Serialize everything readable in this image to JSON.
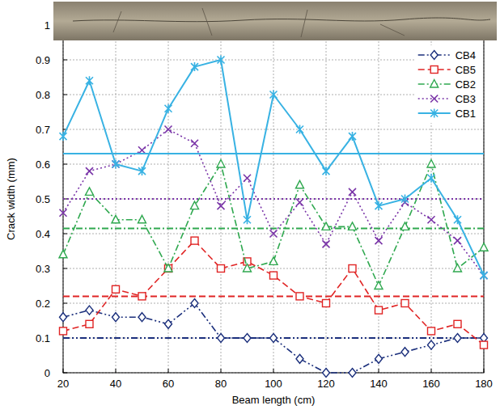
{
  "chart_data": {
    "type": "line",
    "x_label": "Beam length (cm)",
    "y_label": "Crack width (mm)",
    "x": [
      20,
      30,
      40,
      50,
      60,
      70,
      80,
      90,
      100,
      110,
      120,
      130,
      140,
      150,
      160,
      170,
      180
    ],
    "xlim": [
      20,
      180
    ],
    "xticks": [
      20,
      40,
      60,
      80,
      100,
      120,
      140,
      160,
      180
    ],
    "ylim": [
      0,
      1
    ],
    "yticks": [
      0,
      0.1,
      0.2,
      0.3,
      0.4,
      0.5,
      0.6,
      0.7,
      0.8,
      0.9,
      1
    ],
    "grid": true,
    "legend": "upper right",
    "series": [
      {
        "name": "CB4",
        "color": "#1b2f7c",
        "marker": "diamond",
        "line_style": "dash-dot-dot",
        "mean": 0.1,
        "values": [
          0.16,
          0.18,
          0.16,
          0.16,
          0.14,
          0.2,
          0.1,
          0.1,
          0.1,
          0.04,
          0.0,
          0.0,
          0.04,
          0.06,
          0.08,
          0.1,
          0.1
        ]
      },
      {
        "name": "CB5",
        "color": "#e02424",
        "marker": "square",
        "line_style": "dashed",
        "mean": 0.22,
        "values": [
          0.12,
          0.14,
          0.24,
          0.22,
          0.3,
          0.38,
          0.3,
          0.32,
          0.28,
          0.22,
          0.2,
          0.3,
          0.18,
          0.2,
          0.12,
          0.14,
          0.08
        ]
      },
      {
        "name": "CB2",
        "color": "#2fa84f",
        "marker": "triangle",
        "line_style": "dash-dot",
        "mean": 0.415,
        "values": [
          0.34,
          0.52,
          0.44,
          0.44,
          0.3,
          0.48,
          0.6,
          0.3,
          0.32,
          0.54,
          0.42,
          0.42,
          0.25,
          0.42,
          0.6,
          0.3,
          0.36
        ]
      },
      {
        "name": "CB3",
        "color": "#7a35a8",
        "marker": "x",
        "line_style": "dotted",
        "mean": 0.5,
        "values": [
          0.46,
          0.58,
          0.6,
          0.64,
          0.7,
          0.66,
          0.48,
          0.56,
          0.4,
          0.49,
          0.37,
          0.52,
          0.38,
          0.49,
          0.44,
          0.38,
          0.28
        ]
      },
      {
        "name": "CB1",
        "color": "#38b2e3",
        "marker": "asterisk",
        "line_style": "solid",
        "mean": 0.63,
        "values": [
          0.68,
          0.84,
          0.6,
          0.58,
          0.76,
          0.88,
          0.9,
          0.44,
          0.8,
          0.7,
          0.58,
          0.68,
          0.48,
          0.5,
          0.56,
          0.44,
          0.28
        ]
      }
    ]
  }
}
